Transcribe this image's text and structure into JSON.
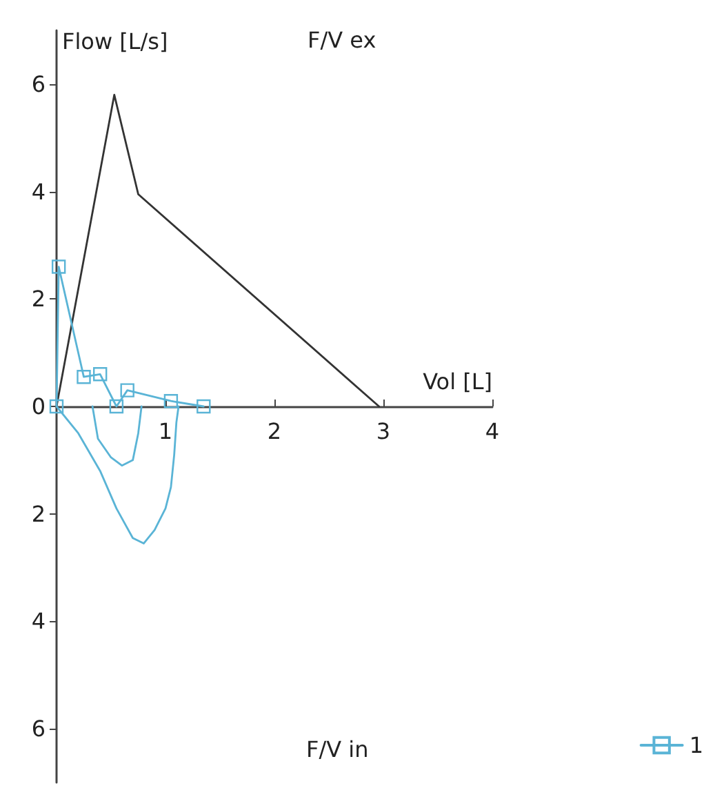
{
  "chart_data": {
    "type": "line",
    "title": "F/V ex",
    "xlabel": "Vol [L]",
    "ylabel": "Flow [L/s]",
    "annotations": [
      "F/V in"
    ],
    "xlim": [
      0,
      4
    ],
    "xticks": [
      1,
      2,
      3,
      4
    ],
    "ylim": [
      -7,
      7
    ],
    "yticks": [
      {
        "value": -6,
        "label": "6"
      },
      {
        "value": -4,
        "label": "4"
      },
      {
        "value": -2,
        "label": "2"
      },
      0,
      2,
      4,
      6
    ],
    "grid": false,
    "legend": "bottom right",
    "line_style": "solid",
    "series": [
      {
        "color": "#333333",
        "marker": "none",
        "x": [
          0,
          0.53,
          0.75,
          2.96
        ],
        "values": [
          0,
          5.8,
          3.95,
          0
        ]
      },
      {
        "name": "1",
        "color": "#5ab4d6",
        "marker": "square",
        "x": [
          0,
          0.02,
          0.25,
          0.4,
          0.55,
          0.65,
          1.05,
          1.35
        ],
        "values": [
          0,
          2.6,
          0.55,
          0.6,
          0,
          0.3,
          0.1,
          0
        ]
      },
      {
        "color": "#5ab4d6",
        "marker": "none",
        "x": [
          0,
          0.2,
          0.4,
          0.55,
          0.7,
          0.8,
          0.9,
          1.0,
          1.05,
          1.08,
          1.1,
          1.12
        ],
        "values": [
          0,
          -0.5,
          -1.2,
          -1.9,
          -2.45,
          -2.55,
          -2.3,
          -1.9,
          -1.5,
          -0.9,
          -0.3,
          0
        ]
      },
      {
        "color": "#5ab4d6",
        "marker": "none",
        "x": [
          0.33,
          0.38,
          0.5,
          0.6,
          0.7,
          0.75,
          0.78
        ],
        "values": [
          0,
          -0.6,
          -0.95,
          -1.1,
          -1.0,
          -0.5,
          0
        ]
      }
    ]
  }
}
